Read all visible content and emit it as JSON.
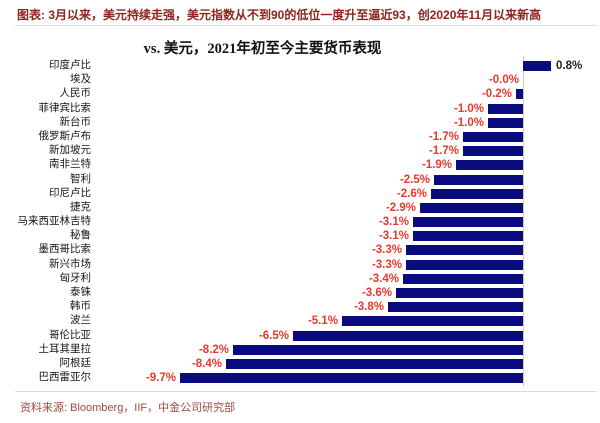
{
  "figure_caption": "图表: 3月以来，美元持续走强，美元指数从不到90的低位一度升至逼近93，创2020年11月以来新高",
  "chart_data": {
    "type": "bar",
    "orientation": "horizontal",
    "title": "vs. 美元，2021年初至今主要货币表现",
    "value_unit": "%",
    "categories": [
      "印度卢比",
      "埃及",
      "人民币",
      "菲律宾比索",
      "新台币",
      "俄罗斯卢布",
      "新加坡元",
      "南非兰特",
      "智利",
      "印尼卢比",
      "捷克",
      "马来西亚林吉特",
      "秘鲁",
      "墨西哥比索",
      "新兴市场",
      "匈牙利",
      "泰铢",
      "韩币",
      "波兰",
      "哥伦比亚",
      "土耳其里拉",
      "阿根廷",
      "巴西雷亚尔"
    ],
    "values": [
      0.8,
      -0.0,
      -0.2,
      -1.0,
      -1.0,
      -1.7,
      -1.7,
      -1.9,
      -2.5,
      -2.6,
      -2.9,
      -3.1,
      -3.1,
      -3.3,
      -3.3,
      -3.4,
      -3.6,
      -3.8,
      -5.1,
      -6.5,
      -8.2,
      -8.4,
      -9.7
    ],
    "value_labels": [
      "0.8%",
      "-0.0%",
      "-0.2%",
      "-1.0%",
      "-1.0%",
      "-1.7%",
      "-1.7%",
      "-1.9%",
      "-2.5%",
      "-2.6%",
      "-2.9%",
      "-3.1%",
      "-3.1%",
      "-3.3%",
      "-3.3%",
      "-3.4%",
      "-3.6%",
      "-3.8%",
      "-5.1%",
      "-6.5%",
      "-8.2%",
      "-8.4%",
      "-9.7%"
    ],
    "xlim": [
      -12,
      2.2
    ],
    "grid": false,
    "legend": false,
    "zero_axis_shown": true
  },
  "source_note": "资料来源: Bloomberg，IIF，中金公司研究部",
  "colors": {
    "bar": "#0b0b80",
    "negative_label": "#e8392c",
    "positive_label": "#222222",
    "caption": "#8e241d",
    "source": "#a04b42",
    "rule": "#dcdcdc",
    "axis_line": "#c9c9c9"
  }
}
